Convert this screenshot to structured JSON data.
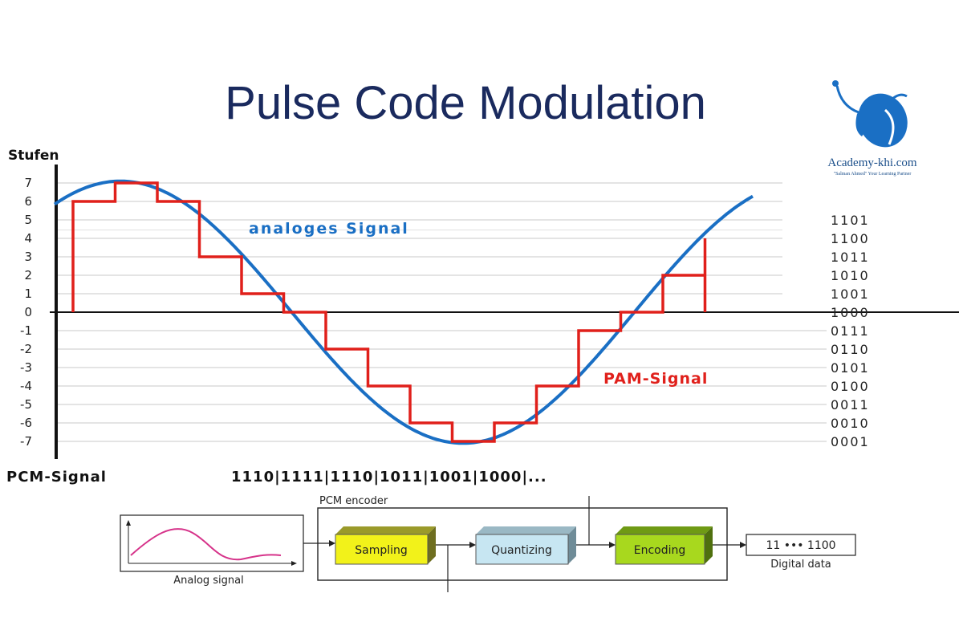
{
  "title": "Pulse Code Modulation",
  "logo": {
    "name": "Academy-khi.com",
    "tagline": "\"Salman Ahmed\" Your Learning Partner"
  },
  "chart_data": {
    "type": "line",
    "ylabel": "Stufen",
    "ylim": [
      -7,
      7
    ],
    "y_ticks": [
      "7",
      "6",
      "5",
      "4",
      "3",
      "2",
      "1",
      "0",
      "-1",
      "-2",
      "-3",
      "-4",
      "-5",
      "-6",
      "-7"
    ],
    "series": [
      {
        "name": "analoges Signal",
        "color": "#1a6fc4"
      },
      {
        "name": "PAM-Signal",
        "color": "#e0201b",
        "values": [
          6,
          7,
          6,
          3,
          1,
          0,
          -2,
          -4,
          -6,
          -7,
          -6,
          -4,
          -1,
          0,
          2,
          4
        ]
      }
    ],
    "codes": [
      "1101",
      "1100",
      "1011",
      "1010",
      "1001",
      "1000",
      "0111",
      "0110",
      "0101",
      "0100",
      "0011",
      "0010",
      "0001"
    ]
  },
  "pcm": {
    "label": "PCM-Signal",
    "sequence": "1110|1111|1110|1011|1001|1000|..."
  },
  "encoder": {
    "group_label": "PCM encoder",
    "input_caption": "Analog signal",
    "blocks": [
      "Sampling",
      "Quantizing",
      "Encoding"
    ],
    "output_value": "11 ••• 1100",
    "output_caption": "Digital data",
    "colors": {
      "sampling": "#f2f21a",
      "quantizing": "#c7e6f2",
      "encoding": "#a8d81e"
    }
  }
}
